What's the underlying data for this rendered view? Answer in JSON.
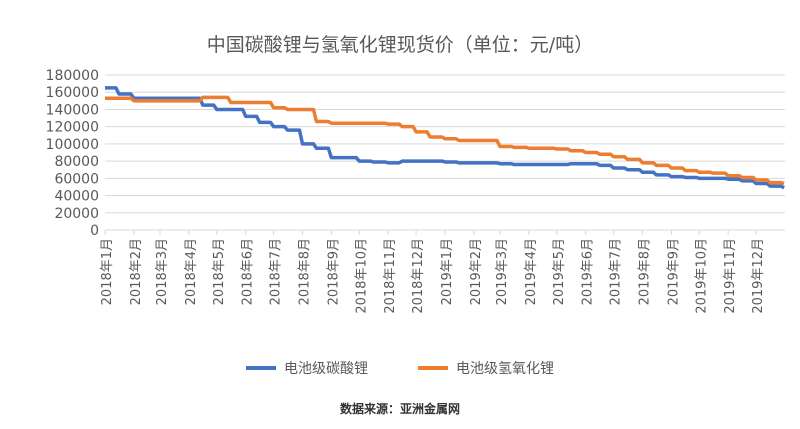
{
  "chart_data": {
    "type": "line",
    "title": "中国碳酸锂与氢氧化锂现货价（单位：元/吨）",
    "xlabel": "",
    "ylabel": "",
    "ylim": [
      0,
      180000
    ],
    "yticks": [
      0,
      20000,
      40000,
      60000,
      80000,
      100000,
      120000,
      140000,
      160000,
      180000
    ],
    "grid": true,
    "legend_position": "bottom",
    "xticks": [
      "2018年1月",
      "2018年2月",
      "2018年3月",
      "2018年4月",
      "2018年5月",
      "2018年6月",
      "2018年7月",
      "2018年8月",
      "2018年9月",
      "2018年10月",
      "2018年11月",
      "2018年12月",
      "2019年1月",
      "2019年2月",
      "2019年3月",
      "2019年4月",
      "2019年5月",
      "2019年6月",
      "2019年7月",
      "2019年8月",
      "2019年9月",
      "2019年10月",
      "2019年11月",
      "2019年12月"
    ],
    "x": [
      "2018-01-01",
      "2018-01-16",
      "2018-02-01",
      "2018-02-16",
      "2018-03-01",
      "2018-03-16",
      "2018-04-01",
      "2018-04-16",
      "2018-05-01",
      "2018-05-16",
      "2018-06-01",
      "2018-06-16",
      "2018-07-01",
      "2018-07-16",
      "2018-08-01",
      "2018-08-16",
      "2018-09-01",
      "2018-09-16",
      "2018-10-01",
      "2018-10-16",
      "2018-11-01",
      "2018-11-16",
      "2018-12-01",
      "2018-12-16",
      "2019-01-01",
      "2019-01-16",
      "2019-02-01",
      "2019-02-16",
      "2019-03-01",
      "2019-03-16",
      "2019-04-01",
      "2019-04-16",
      "2019-05-01",
      "2019-05-16",
      "2019-06-01",
      "2019-06-16",
      "2019-07-01",
      "2019-07-16",
      "2019-08-01",
      "2019-08-16",
      "2019-09-01",
      "2019-09-16",
      "2019-10-01",
      "2019-10-16",
      "2019-11-01",
      "2019-11-16",
      "2019-12-01",
      "2019-12-16",
      "2019-12-31"
    ],
    "series": [
      {
        "name": "电池级碳酸锂",
        "color": "#4472C4",
        "values": [
          165000,
          158000,
          153000,
          153000,
          153000,
          153000,
          153000,
          145000,
          140000,
          140000,
          132000,
          125000,
          120000,
          116000,
          100000,
          95000,
          84000,
          84000,
          80000,
          79000,
          78000,
          80000,
          80000,
          80000,
          79000,
          78000,
          78000,
          78000,
          77000,
          76000,
          76000,
          76000,
          76000,
          77000,
          77000,
          75000,
          72000,
          70000,
          67000,
          64000,
          62000,
          61000,
          60000,
          60000,
          59000,
          57000,
          54000,
          51000,
          49000
        ]
      },
      {
        "name": "电池级氢氧化锂",
        "color": "#ED7D31",
        "values": [
          153000,
          153000,
          150000,
          150000,
          150000,
          150000,
          150000,
          154000,
          154000,
          148000,
          148000,
          148000,
          142000,
          140000,
          140000,
          126000,
          124000,
          124000,
          124000,
          124000,
          123000,
          120000,
          114000,
          108000,
          106000,
          104000,
          104000,
          104000,
          97000,
          96000,
          95000,
          95000,
          94000,
          92000,
          90000,
          88000,
          85000,
          82000,
          78000,
          75000,
          72000,
          69000,
          67000,
          66000,
          63000,
          61000,
          58000,
          55000,
          54000
        ]
      }
    ]
  },
  "source": "数据来源：亚洲金属网"
}
